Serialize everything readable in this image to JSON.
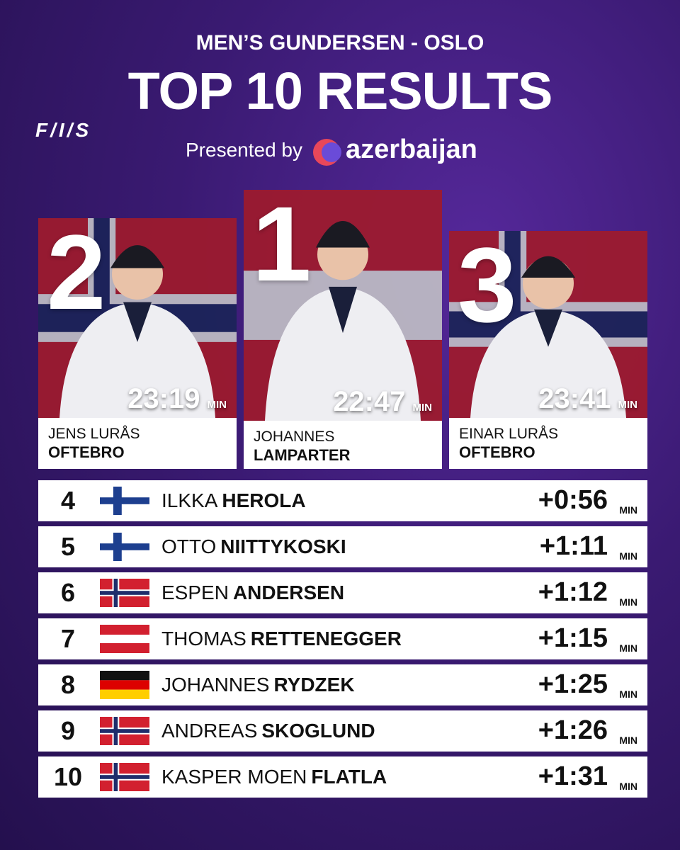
{
  "header": {
    "subtitle": "MEN’S GUNDERSEN - OSLO",
    "title": "TOP 10 RESULTS",
    "presented": "Presented by",
    "sponsor": "azerbaijan",
    "logo": "F/I/S"
  },
  "podium": [
    {
      "rank": "2",
      "time": "23:19",
      "unit": "MIN",
      "first": "JENS LURÅS",
      "last": "OFTEBRO"
    },
    {
      "rank": "1",
      "time": "22:47",
      "unit": "MIN",
      "first": "JOHANNES",
      "last": "LAMPARTER"
    },
    {
      "rank": "3",
      "time": "23:41",
      "unit": "MIN",
      "first": "EINAR LURÅS",
      "last": "OFTEBRO"
    }
  ],
  "rows": [
    {
      "rank": "4",
      "first": "ILKKA",
      "last": "HEROLA",
      "time": "+0:56",
      "unit": "MIN"
    },
    {
      "rank": "5",
      "first": "OTTO",
      "last": "NIITTYKOSKI",
      "time": "+1:11",
      "unit": "MIN"
    },
    {
      "rank": "6",
      "first": "ESPEN",
      "last": "ANDERSEN",
      "time": "+1:12",
      "unit": "MIN"
    },
    {
      "rank": "7",
      "first": "THOMAS",
      "last": "RETTENEGGER",
      "time": "+1:15",
      "unit": "MIN"
    },
    {
      "rank": "8",
      "first": "JOHANNES",
      "last": "RYDZEK",
      "time": "+1:25",
      "unit": "MIN"
    },
    {
      "rank": "9",
      "first": "ANDREAS",
      "last": "SKOGLUND",
      "time": "+1:26",
      "unit": "MIN"
    },
    {
      "rank": "10",
      "first": "KASPER MOEN",
      "last": "FLATLA",
      "time": "+1:31",
      "unit": "MIN"
    }
  ]
}
